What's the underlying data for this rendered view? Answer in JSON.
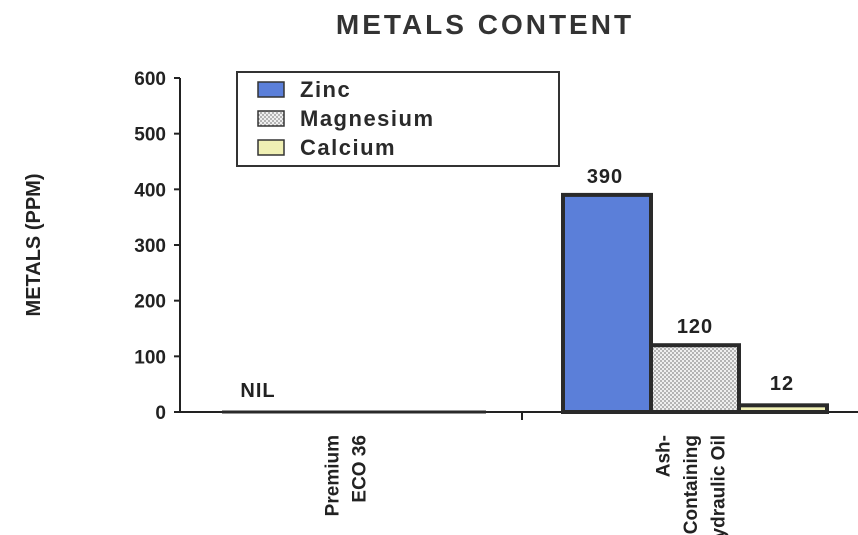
{
  "chart_data": {
    "type": "bar",
    "title": "METALS CONTENT",
    "ylabel": "METALS (PPM)",
    "xlabel": "",
    "ylim": [
      0,
      600
    ],
    "yticks": [
      0,
      100,
      200,
      300,
      400,
      500,
      600
    ],
    "grid": false,
    "legend_position": "top-left",
    "categories": [
      {
        "lines": [
          "Premium",
          "ECO 36"
        ]
      },
      {
        "lines": [
          "Ash-",
          "Containing",
          "Hydraulic Oil"
        ]
      }
    ],
    "series": [
      {
        "name": "Zinc",
        "color": "#5b7fd9",
        "pattern": "solid",
        "values": [
          0,
          390
        ]
      },
      {
        "name": "Magnesium",
        "color": "#d8d8d8",
        "pattern": "dots",
        "values": [
          0,
          120
        ]
      },
      {
        "name": "Calcium",
        "color": "#f0f0b4",
        "pattern": "solid",
        "values": [
          0,
          12
        ]
      }
    ],
    "data_labels": [
      {
        "category": 0,
        "series": 0,
        "text": "NIL"
      },
      {
        "category": 1,
        "series": 0,
        "text": "390"
      },
      {
        "category": 1,
        "series": 1,
        "text": "120"
      },
      {
        "category": 1,
        "series": 2,
        "text": "12"
      }
    ]
  }
}
